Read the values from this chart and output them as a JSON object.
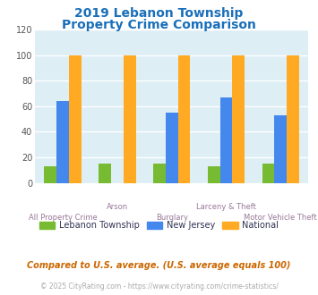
{
  "title_line1": "2019 Lebanon Township",
  "title_line2": "Property Crime Comparison",
  "title_color": "#1a6fba",
  "categories": [
    "All Property Crime",
    "Arson",
    "Burglary",
    "Larceny & Theft",
    "Motor Vehicle Theft"
  ],
  "lebanon_values": [
    13,
    15,
    15,
    13,
    15
  ],
  "nj_values": [
    64,
    0,
    55,
    67,
    53
  ],
  "national_values": [
    100,
    100,
    100,
    100,
    100
  ],
  "lebanon_color": "#77bb33",
  "nj_color": "#4488ee",
  "national_color": "#ffaa22",
  "ylim": [
    0,
    120
  ],
  "yticks": [
    0,
    20,
    40,
    60,
    80,
    100,
    120
  ],
  "plot_bg_color": "#ddeef5",
  "grid_color": "#ffffff",
  "legend_labels": [
    "Lebanon Township",
    "New Jersey",
    "National"
  ],
  "footnote1": "Compared to U.S. average. (U.S. average equals 100)",
  "footnote2": "© 2025 CityRating.com - https://www.cityrating.com/crime-statistics/",
  "footnote1_color": "#cc6600",
  "footnote2_color": "#aaaaaa",
  "cat_label_color": "#997799",
  "legend_text_color": "#333355"
}
